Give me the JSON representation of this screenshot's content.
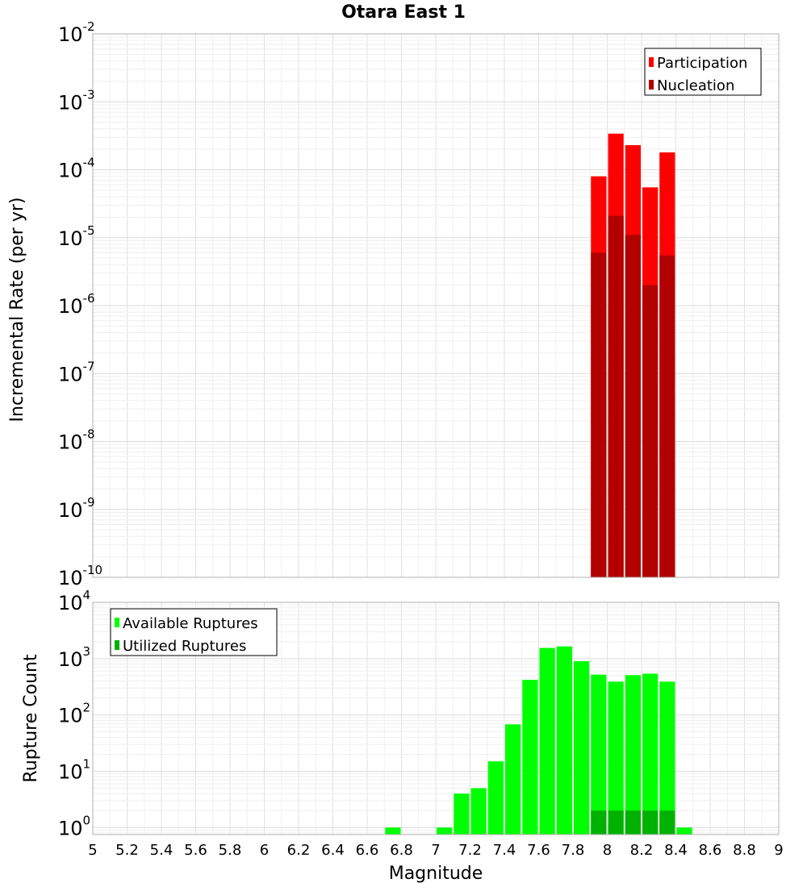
{
  "chart_data": [
    {
      "type": "bar",
      "title": "Otara East 1",
      "xlabel": "",
      "ylabel": "Incremental Rate (per yr)",
      "yscale": "log",
      "ylim": [
        1e-10,
        0.01
      ],
      "xlim": [
        5,
        9
      ],
      "yticks": [
        {
          "base": "10",
          "exp": "-2"
        },
        {
          "base": "10",
          "exp": "-3"
        },
        {
          "base": "10",
          "exp": "-4"
        },
        {
          "base": "10",
          "exp": "-5"
        },
        {
          "base": "10",
          "exp": "-6"
        },
        {
          "base": "10",
          "exp": "-7"
        },
        {
          "base": "10",
          "exp": "-8"
        },
        {
          "base": "10",
          "exp": "-9"
        },
        {
          "base": "10",
          "exp": "-10"
        }
      ],
      "legend": {
        "position": "top-right",
        "entries": [
          "Participation",
          "Nucleation"
        ]
      },
      "grid": true,
      "series": [
        {
          "name": "Participation",
          "color": "#ff0000",
          "x": [
            7.95,
            8.05,
            8.15,
            8.25,
            8.35
          ],
          "values": [
            8e-05,
            0.00034,
            0.00023,
            5.5e-05,
            0.00018
          ]
        },
        {
          "name": "Nucleation",
          "color": "#b20000",
          "x": [
            7.95,
            8.05,
            8.15,
            8.25,
            8.35
          ],
          "values": [
            6e-06,
            2.1e-05,
            1.1e-05,
            2e-06,
            5.5e-06
          ]
        }
      ]
    },
    {
      "type": "bar",
      "title": "",
      "xlabel": "Magnitude",
      "ylabel": "Rupture Count",
      "yscale": "log",
      "ylim": [
        0.75,
        10000
      ],
      "xlim": [
        5,
        9
      ],
      "yticks": [
        {
          "value": 1,
          "base": "10",
          "exp": "0"
        },
        {
          "value": 10,
          "base": "10",
          "exp": "1"
        },
        {
          "value": 100,
          "base": "10",
          "exp": "2"
        },
        {
          "value": 1000,
          "base": "10",
          "exp": "3"
        },
        {
          "value": 10000,
          "base": "10",
          "exp": "4"
        }
      ],
      "xticks": [
        "5",
        "5.2",
        "5.4",
        "5.6",
        "5.8",
        "6",
        "6.2",
        "6.4",
        "6.6",
        "6.8",
        "7",
        "7.2",
        "7.4",
        "7.6",
        "7.8",
        "8",
        "8.2",
        "8.4",
        "8.6",
        "8.8",
        "9"
      ],
      "legend": {
        "position": "top-left",
        "entries": [
          "Available Ruptures",
          "Utilized Ruptures"
        ]
      },
      "grid": true,
      "series": [
        {
          "name": "Available Ruptures",
          "color": "#00ff00",
          "x": [
            6.75,
            7.05,
            7.15,
            7.25,
            7.35,
            7.45,
            7.55,
            7.65,
            7.75,
            7.85,
            7.95,
            8.05,
            8.15,
            8.25,
            8.35,
            8.45
          ],
          "values": [
            1,
            1,
            4,
            5,
            15,
            68,
            420,
            1550,
            1650,
            900,
            520,
            390,
            510,
            540,
            390,
            1
          ]
        },
        {
          "name": "Utilized Ruptures",
          "color": "#00b200",
          "x": [
            7.95,
            8.05,
            8.15,
            8.25,
            8.35
          ],
          "values": [
            2,
            2,
            2,
            2,
            2
          ]
        }
      ]
    }
  ]
}
